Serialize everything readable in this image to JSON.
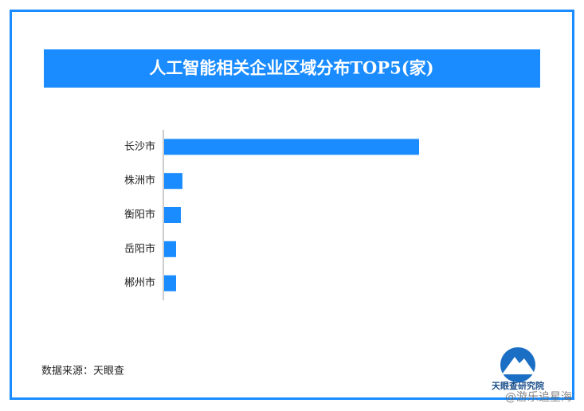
{
  "chart_data": {
    "type": "bar",
    "orientation": "horizontal",
    "title": "人工智能相关企业区域分布TOP5(家)",
    "categories": [
      "长沙市",
      "株洲市",
      "衡阳市",
      "岳阳市",
      "郴州市"
    ],
    "values": [
      321,
      24,
      22,
      16,
      16
    ],
    "color": "#1a8cff"
  },
  "source": "数据来源：天眼查",
  "logo": "天眼查研究院",
  "watermark": "@游乐追星海"
}
